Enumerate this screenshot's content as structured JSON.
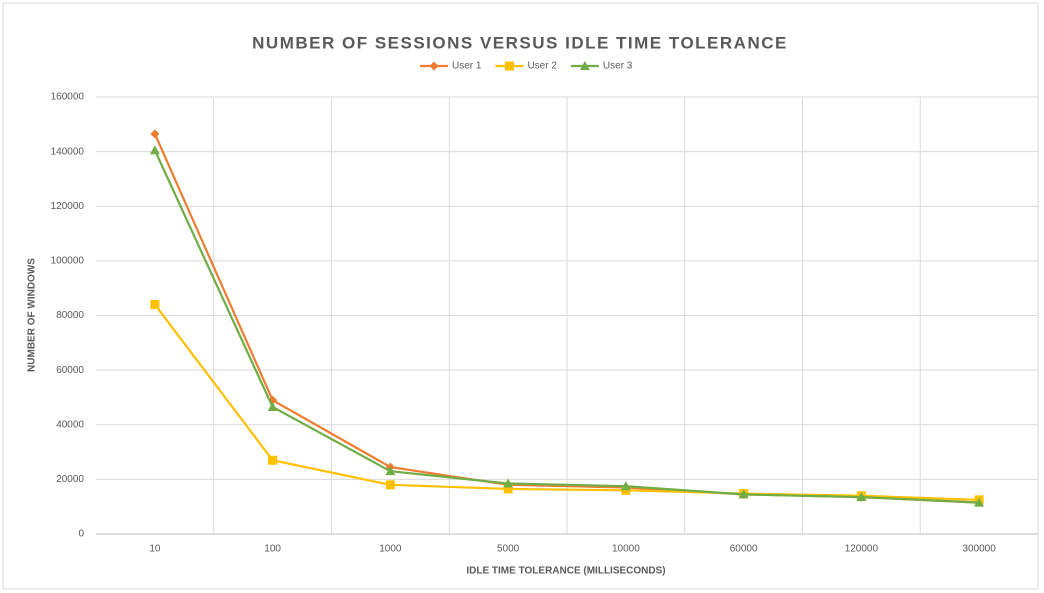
{
  "chart_data": {
    "type": "line",
    "title": "NUMBER OF SESSIONS VERSUS IDLE TIME TOLERANCE",
    "x_label": "IDLE TIME TOLERANCE (MILLISECONDS)",
    "y_label": "NUMBER OF WINDOWS",
    "categories": [
      "10",
      "100",
      "1000",
      "5000",
      "10000",
      "60000",
      "120000",
      "300000"
    ],
    "series": [
      {
        "name": "User 1",
        "color": "#ED7D31",
        "marker": "diamond",
        "values": [
          146500,
          49000,
          24500,
          18000,
          17000,
          14500,
          13500,
          11500
        ]
      },
      {
        "name": "User 2",
        "color": "#FFC000",
        "marker": "square",
        "values": [
          84000,
          27000,
          18000,
          16500,
          16000,
          14800,
          14000,
          12500
        ]
      },
      {
        "name": "User 3",
        "color": "#70AD47",
        "marker": "triangle",
        "values": [
          140500,
          46500,
          23000,
          18500,
          17500,
          14500,
          13500,
          11500
        ]
      }
    ],
    "ylim": [
      0,
      160000
    ],
    "yticks": [
      0,
      20000,
      40000,
      60000,
      80000,
      100000,
      120000,
      140000,
      160000
    ],
    "grid": true,
    "legend": "top"
  }
}
